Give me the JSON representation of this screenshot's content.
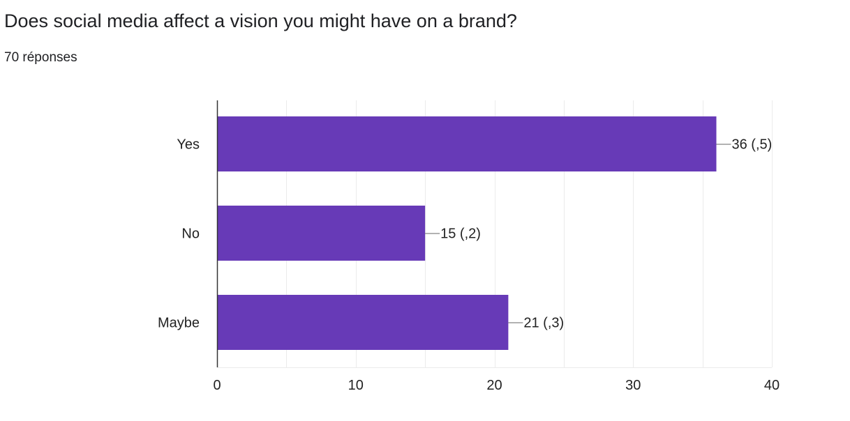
{
  "question": {
    "title": "Does social media affect a vision you might have on a brand?",
    "responses": "70 réponses"
  },
  "chart_data": {
    "type": "bar",
    "orientation": "horizontal",
    "title": "Does social media affect a vision you might have on a brand?",
    "subtitle": "70 réponses",
    "categories": [
      "Yes",
      "No",
      "Maybe"
    ],
    "values": [
      36,
      15,
      21
    ],
    "data_labels": [
      "36 (,5)",
      "15 (,2)",
      "21 (,3)"
    ],
    "xlim": [
      0,
      40
    ],
    "x_ticks": [
      0,
      10,
      20,
      30,
      40
    ],
    "grid": true,
    "legend": "none",
    "bar_color": "#673ab7",
    "grid_color": "#ebebeb",
    "axis_color": "#333333",
    "label_color": "#222222"
  }
}
